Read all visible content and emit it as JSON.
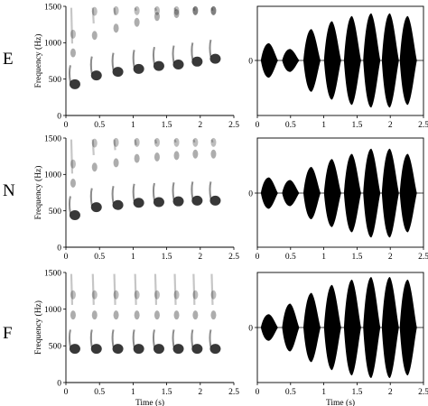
{
  "figure": {
    "rows": [
      "E",
      "N",
      "F"
    ]
  },
  "chart_data": [
    {
      "type": "heatmap",
      "panel": "E",
      "xlabel": "",
      "ylabel": "Frequency (Hz)",
      "xlim": [
        0,
        2.5
      ],
      "ylim": [
        0,
        1500
      ],
      "xticks": [
        "0",
        "0.5",
        "1",
        "1.5",
        "2",
        "2.5"
      ],
      "yticks": [
        "0",
        "500",
        "1000",
        "1500"
      ],
      "note_times_s": [
        0.08,
        0.4,
        0.72,
        1.03,
        1.33,
        1.62,
        1.9,
        2.17
      ],
      "fundamental_hz": [
        430,
        550,
        600,
        640,
        680,
        700,
        740,
        780
      ]
    },
    {
      "type": "area",
      "panel": "E-waveform",
      "xlim": [
        0,
        2.5
      ],
      "xticks": [
        "0",
        "0.5",
        "1",
        "1.5",
        "2",
        "2.5"
      ],
      "yticks": [
        "0"
      ],
      "note_times_s": [
        0.08,
        0.4,
        0.72,
        1.03,
        1.33,
        1.62,
        1.9,
        2.17
      ],
      "relative_amplitude": [
        0.33,
        0.22,
        0.6,
        0.75,
        0.85,
        0.9,
        0.9,
        0.85
      ]
    },
    {
      "type": "heatmap",
      "panel": "N",
      "xlabel": "",
      "ylabel": "Frequency (Hz)",
      "xlim": [
        0,
        2.5
      ],
      "ylim": [
        0,
        1500
      ],
      "xticks": [
        "0",
        "0.5",
        "1",
        "1.5",
        "2",
        "2.5"
      ],
      "yticks": [
        "0",
        "500",
        "1000",
        "1500"
      ],
      "note_times_s": [
        0.08,
        0.4,
        0.72,
        1.03,
        1.33,
        1.62,
        1.9,
        2.17
      ],
      "fundamental_hz": [
        440,
        550,
        580,
        610,
        620,
        630,
        640,
        640
      ]
    },
    {
      "type": "area",
      "panel": "N-waveform",
      "xlim": [
        0,
        2.5
      ],
      "xticks": [
        "0",
        "0.5",
        "1",
        "1.5",
        "2",
        "2.5"
      ],
      "yticks": [
        "0"
      ],
      "note_times_s": [
        0.08,
        0.4,
        0.72,
        1.03,
        1.33,
        1.62,
        1.9,
        2.17
      ],
      "relative_amplitude": [
        0.3,
        0.25,
        0.5,
        0.65,
        0.75,
        0.85,
        0.85,
        0.75
      ]
    },
    {
      "type": "heatmap",
      "panel": "F",
      "xlabel": "Time (s)",
      "ylabel": "Frequency (Hz)",
      "xlim": [
        0,
        2.5
      ],
      "ylim": [
        0,
        1500
      ],
      "xticks": [
        "0",
        "0.5",
        "1",
        "1.5",
        "2",
        "2.5"
      ],
      "yticks": [
        "0",
        "500",
        "1000",
        "1500"
      ],
      "note_times_s": [
        0.08,
        0.4,
        0.72,
        1.03,
        1.33,
        1.62,
        1.9,
        2.17
      ],
      "fundamental_hz": [
        460,
        460,
        460,
        460,
        460,
        460,
        460,
        460
      ]
    },
    {
      "type": "area",
      "panel": "F-waveform",
      "xlabel": "Time (s)",
      "xlim": [
        0,
        2.5
      ],
      "xticks": [
        "0",
        "0.5",
        "1",
        "1.5",
        "2",
        "2.5"
      ],
      "yticks": [
        "0"
      ],
      "note_times_s": [
        0.08,
        0.4,
        0.72,
        1.03,
        1.33,
        1.62,
        1.9,
        2.17
      ],
      "relative_amplitude": [
        0.25,
        0.45,
        0.65,
        0.8,
        0.9,
        0.95,
        0.95,
        0.9
      ]
    }
  ]
}
